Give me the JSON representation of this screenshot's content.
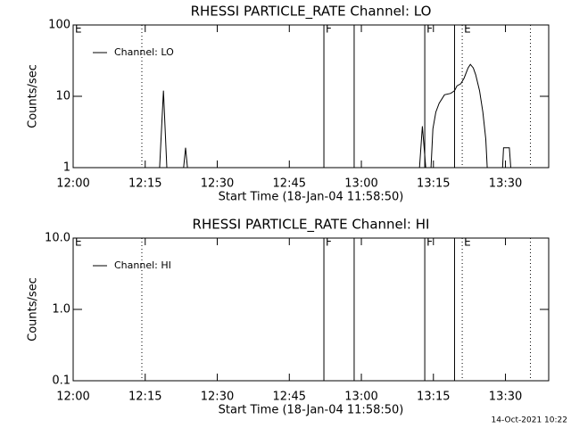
{
  "chart_data": [
    {
      "type": "line",
      "title": "RHESSI PARTICLE_RATE Channel: LO",
      "xlabel": "Start Time (18-Jan-04 11:58:50)",
      "ylabel": "Counts/sec",
      "x": [
        18.0,
        18.8,
        19.5,
        23.0,
        23.4,
        23.8,
        72.1,
        72.7,
        73.4,
        74.5,
        74.9,
        75.5,
        76.2,
        77.3,
        78.6,
        79.4,
        79.9,
        80.7,
        81.4,
        82.2,
        82.7,
        83.3,
        83.8,
        84.6,
        85.3,
        85.9,
        86.2,
        89.4,
        89.6,
        90.8,
        91.1
      ],
      "series": [
        {
          "name": "Channel: LO",
          "color": "#000000",
          "values": [
            1,
            12,
            1,
            1,
            1.9,
            1,
            1,
            3.8,
            1,
            1,
            3.5,
            6,
            8,
            10.5,
            11,
            12,
            14,
            15,
            18,
            25,
            28,
            25,
            20,
            12,
            6,
            2.5,
            1,
            1,
            1.9,
            1.9,
            1
          ]
        }
      ],
      "xlim": [
        0,
        99
      ],
      "ylim": [
        1,
        100
      ],
      "log_y": true,
      "xticks": [
        {
          "value": 0,
          "label": "12:00"
        },
        {
          "value": 15,
          "label": "12:15"
        },
        {
          "value": 30,
          "label": "12:30"
        },
        {
          "value": 45,
          "label": "12:45"
        },
        {
          "value": 60,
          "label": "13:00"
        },
        {
          "value": 75,
          "label": "13:15"
        },
        {
          "value": 90,
          "label": "13:30"
        }
      ],
      "yticks": [
        1,
        10,
        100
      ],
      "markers": [
        {
          "x": 0,
          "label": "E",
          "style": "dotted"
        },
        {
          "x": 14.3,
          "style": "dotted"
        },
        {
          "x": 52.2,
          "label": "F",
          "style": "solid"
        },
        {
          "x": 58.5,
          "style": "solid"
        },
        {
          "x": 73.2,
          "label": "F",
          "style": "solid"
        },
        {
          "x": 79.4,
          "style": "solid"
        },
        {
          "x": 81.0,
          "label": "E",
          "style": "dotted"
        },
        {
          "x": 95.2,
          "style": "dotted"
        }
      ]
    },
    {
      "type": "line",
      "title": "RHESSI PARTICLE_RATE Channel: HI",
      "xlabel": "Start Time (18-Jan-04 11:58:50)",
      "ylabel": "Counts/sec",
      "x": [],
      "series": [
        {
          "name": "Channel: HI",
          "color": "#000000",
          "values": []
        }
      ],
      "xlim": [
        0,
        99
      ],
      "ylim": [
        0.1,
        10
      ],
      "log_y": true,
      "xticks": [
        {
          "value": 0,
          "label": "12:00"
        },
        {
          "value": 15,
          "label": "12:15"
        },
        {
          "value": 30,
          "label": "12:30"
        },
        {
          "value": 45,
          "label": "12:45"
        },
        {
          "value": 60,
          "label": "13:00"
        },
        {
          "value": 75,
          "label": "13:15"
        },
        {
          "value": 90,
          "label": "13:30"
        }
      ],
      "yticks": [
        0.1,
        {
          "value": 1,
          "label": "1.0"
        },
        {
          "value": 10,
          "label": "10.0"
        }
      ],
      "markers": [
        {
          "x": 0,
          "label": "E",
          "style": "dotted"
        },
        {
          "x": 14.3,
          "style": "dotted"
        },
        {
          "x": 52.2,
          "label": "F",
          "style": "solid"
        },
        {
          "x": 58.5,
          "style": "solid"
        },
        {
          "x": 73.2,
          "label": "F",
          "style": "solid"
        },
        {
          "x": 79.4,
          "style": "solid"
        },
        {
          "x": 81.0,
          "label": "E",
          "style": "dotted"
        },
        {
          "x": 95.2,
          "style": "dotted"
        }
      ]
    }
  ],
  "footer": "14-Oct-2021 10:22"
}
